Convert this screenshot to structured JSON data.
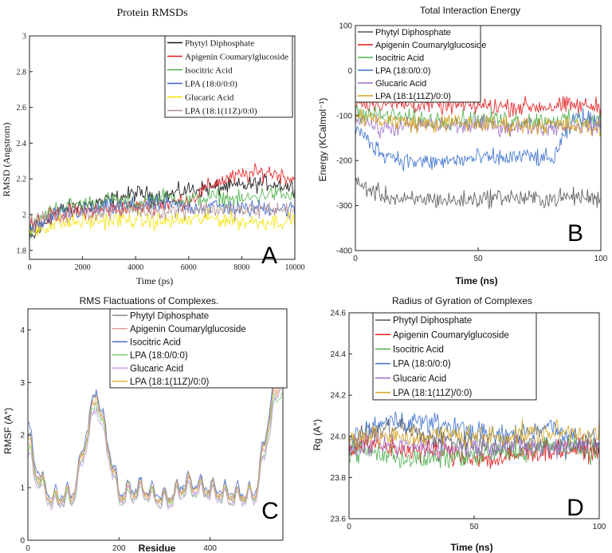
{
  "chart_data": [
    {
      "panel_letter": "A",
      "type": "line",
      "title": "Protein RMSDs",
      "xlabel": "Time (ps)",
      "ylabel": "RMSD (Angstrom)",
      "xlim": [
        0,
        10000
      ],
      "ylim": [
        1.75,
        3.0
      ],
      "xticks": [
        "0",
        "2000",
        "4000",
        "6000",
        "8000",
        "10000"
      ],
      "yticks": [
        "1.8",
        "2",
        "2.2",
        "2.4",
        "2.6",
        "2.8",
        "3"
      ],
      "legend_position": "top-right",
      "series": [
        {
          "name": "Phytyl Diphosphate",
          "color": "#111111",
          "x": [
            0,
            1000,
            2000,
            3000,
            4000,
            5000,
            6000,
            7000,
            8000,
            9000,
            10000
          ],
          "values": [
            1.85,
            2.02,
            2.05,
            2.08,
            2.12,
            2.1,
            2.14,
            2.15,
            2.16,
            2.18,
            2.15
          ]
        },
        {
          "name": "Apigenin Coumarylglucoside",
          "color": "#e41a1c",
          "x": [
            0,
            1000,
            2000,
            3000,
            4000,
            5000,
            6000,
            7000,
            8000,
            9000,
            10000
          ],
          "values": [
            1.95,
            2.0,
            2.02,
            2.03,
            2.04,
            2.06,
            2.08,
            2.18,
            2.22,
            2.24,
            2.2
          ]
        },
        {
          "name": "Isocitric Acid",
          "color": "#4daf4a",
          "x": [
            0,
            1000,
            2000,
            3000,
            4000,
            5000,
            6000,
            7000,
            8000,
            9000,
            10000
          ],
          "values": [
            1.92,
            2.04,
            2.06,
            2.08,
            2.06,
            2.1,
            2.08,
            2.1,
            2.08,
            2.12,
            2.1
          ]
        },
        {
          "name": "LPA (18:0/0:0)",
          "color": "#3a5fcd",
          "x": [
            0,
            1000,
            2000,
            3000,
            4000,
            5000,
            6000,
            7000,
            8000,
            9000,
            10000
          ],
          "values": [
            1.9,
            2.0,
            2.02,
            2.04,
            2.05,
            2.06,
            2.04,
            2.05,
            2.03,
            2.04,
            2.03
          ]
        },
        {
          "name": "Glucaric Acid",
          "color": "#f2e200",
          "x": [
            0,
            1000,
            2000,
            3000,
            4000,
            5000,
            6000,
            7000,
            8000,
            9000,
            10000
          ],
          "values": [
            1.9,
            1.95,
            1.96,
            1.97,
            1.97,
            1.96,
            1.97,
            1.98,
            1.96,
            1.96,
            1.97
          ]
        },
        {
          "name": "LPA (18:1(11Z)/0:0)",
          "color": "#b08e8a",
          "x": [
            0,
            1000,
            2000,
            3000,
            4000,
            5000,
            6000,
            7000,
            8000,
            9000,
            10000
          ],
          "values": [
            1.95,
            2.0,
            2.01,
            2.02,
            2.03,
            2.02,
            2.03,
            2.03,
            2.02,
            2.03,
            2.02
          ]
        }
      ]
    },
    {
      "panel_letter": "B",
      "type": "line",
      "title": "Total Interaction Energy",
      "xlabel": "Time (ns)",
      "ylabel": "Energy (KCalmol⁻¹)",
      "xlim": [
        0,
        100
      ],
      "ylim": [
        -400,
        100
      ],
      "xticks": [
        "0",
        "50",
        "100"
      ],
      "yticks": [
        "100",
        "0",
        "-100",
        "-200",
        "-300",
        "-400"
      ],
      "legend_position": "top-left",
      "series": [
        {
          "name": "Phytyl Diphosphate",
          "color": "#555555",
          "x": [
            0,
            10,
            20,
            30,
            40,
            50,
            60,
            70,
            80,
            90,
            100
          ],
          "values": [
            -250,
            -275,
            -290,
            -285,
            -290,
            -285,
            -280,
            -285,
            -285,
            -280,
            -285
          ]
        },
        {
          "name": "Apigenin Coumarylglucoside",
          "color": "#e41a1c",
          "x": [
            0,
            10,
            20,
            30,
            40,
            50,
            60,
            70,
            80,
            90,
            100
          ],
          "values": [
            -70,
            -72,
            -75,
            -75,
            -78,
            -78,
            -80,
            -80,
            -80,
            -78,
            -80
          ]
        },
        {
          "name": "Isocitric Acid",
          "color": "#4daf4a",
          "x": [
            0,
            10,
            20,
            30,
            40,
            50,
            60,
            70,
            80,
            90,
            100
          ],
          "values": [
            -90,
            -100,
            -105,
            -110,
            -110,
            -108,
            -110,
            -110,
            -112,
            -110,
            -110
          ]
        },
        {
          "name": "LPA (18:0/0:0)",
          "color": "#3a6fcd",
          "x": [
            0,
            10,
            20,
            30,
            40,
            50,
            60,
            70,
            80,
            90,
            100
          ],
          "values": [
            -130,
            -180,
            -200,
            -205,
            -200,
            -195,
            -195,
            -190,
            -200,
            -100,
            -120
          ]
        },
        {
          "name": "Glucaric Acid",
          "color": "#9e6fc8",
          "x": [
            0,
            10,
            20,
            30,
            40,
            50,
            60,
            70,
            80,
            90,
            100
          ],
          "values": [
            -100,
            -130,
            -125,
            -120,
            -125,
            -120,
            -125,
            -125,
            -125,
            -120,
            -125
          ]
        },
        {
          "name": "LPA (18:1(11Z)/0:0)",
          "color": "#d4a017",
          "x": [
            0,
            10,
            20,
            30,
            40,
            50,
            60,
            70,
            80,
            90,
            100
          ],
          "values": [
            -100,
            -110,
            -115,
            -120,
            -115,
            -120,
            -120,
            -122,
            -120,
            -125,
            -128
          ]
        }
      ]
    },
    {
      "panel_letter": "C",
      "type": "line",
      "title": "RMS Flactuations of Complexes.",
      "xlabel": "Residue",
      "ylabel": "RMSF (A°)",
      "xlim": [
        0,
        560
      ],
      "ylim": [
        0,
        4.4
      ],
      "xticks": [
        "0",
        "200",
        "400"
      ],
      "yticks": [
        "0",
        "1",
        "2",
        "3",
        "4"
      ],
      "legend_position": "top-right",
      "series": [
        {
          "name": "Phytyl Diphosphate",
          "color": "#888888",
          "x": [
            0,
            15,
            50,
            100,
            150,
            200,
            250,
            300,
            350,
            400,
            450,
            500,
            540,
            560
          ],
          "values": [
            2.0,
            1.3,
            0.7,
            0.8,
            2.8,
            0.8,
            0.9,
            0.7,
            1.0,
            0.9,
            0.8,
            0.8,
            2.8,
            3.8
          ]
        },
        {
          "name": "Apigenin Coumarylglucoside",
          "color": "#e0a0a0",
          "x": [
            0,
            15,
            50,
            100,
            150,
            200,
            250,
            300,
            350,
            400,
            450,
            500,
            540,
            560
          ],
          "values": [
            1.8,
            1.2,
            0.7,
            0.75,
            2.7,
            0.75,
            0.85,
            0.7,
            0.95,
            0.85,
            0.75,
            0.8,
            2.6,
            3.0
          ]
        },
        {
          "name": "Isocitric Acid",
          "color": "#4a6fd0",
          "x": [
            0,
            15,
            50,
            100,
            150,
            200,
            250,
            300,
            350,
            400,
            450,
            500,
            540,
            560
          ],
          "values": [
            2.2,
            1.4,
            0.75,
            0.85,
            2.85,
            0.85,
            0.95,
            0.75,
            1.05,
            0.95,
            0.85,
            0.85,
            2.9,
            3.7
          ]
        },
        {
          "name": "LPA (18:0/0:0)",
          "color": "#7ad07a",
          "x": [
            0,
            15,
            50,
            100,
            150,
            200,
            250,
            300,
            350,
            400,
            450,
            500,
            540,
            560
          ],
          "values": [
            1.7,
            1.2,
            0.65,
            0.7,
            2.6,
            0.7,
            0.8,
            0.65,
            0.9,
            0.8,
            0.7,
            0.75,
            2.5,
            2.8
          ]
        },
        {
          "name": "Glucaric Acid",
          "color": "#c49ae0",
          "x": [
            0,
            15,
            50,
            100,
            150,
            200,
            250,
            300,
            350,
            400,
            450,
            500,
            540,
            560
          ],
          "values": [
            1.6,
            1.1,
            0.6,
            0.7,
            2.5,
            0.7,
            0.8,
            0.6,
            0.9,
            0.8,
            0.7,
            0.7,
            2.4,
            3.2
          ]
        },
        {
          "name": "LPA (18:1(11Z)/0:0)",
          "color": "#e8b040",
          "x": [
            0,
            15,
            50,
            100,
            150,
            200,
            250,
            300,
            350,
            400,
            450,
            500,
            540,
            560
          ],
          "values": [
            1.9,
            1.3,
            0.7,
            0.8,
            2.7,
            0.8,
            0.9,
            0.7,
            1.0,
            0.9,
            0.8,
            0.8,
            2.7,
            3.0
          ]
        }
      ]
    },
    {
      "panel_letter": "D",
      "type": "line",
      "title": "Radius of Gyration of Complexes",
      "xlabel": "Time (ns)",
      "ylabel": "Rg (A°)",
      "xlim": [
        0,
        100
      ],
      "ylim": [
        23.6,
        24.6
      ],
      "xticks": [
        "0",
        "50",
        "100"
      ],
      "yticks": [
        "24.6",
        "24.4",
        "24.2",
        "24.0",
        "23.8",
        "23.6"
      ],
      "legend_position": "top-left",
      "series": [
        {
          "name": "Phytyl Diphosphate",
          "color": "#555555",
          "x": [
            0,
            10,
            20,
            30,
            40,
            50,
            60,
            70,
            80,
            90,
            100
          ],
          "values": [
            23.95,
            24.02,
            24.05,
            24.0,
            23.98,
            23.96,
            23.95,
            23.97,
            23.96,
            23.95,
            23.95
          ]
        },
        {
          "name": "Apigenin Coumarylglucoside",
          "color": "#e41a1c",
          "x": [
            0,
            10,
            20,
            30,
            40,
            50,
            60,
            70,
            80,
            90,
            100
          ],
          "values": [
            23.95,
            23.95,
            23.94,
            23.93,
            23.92,
            23.9,
            23.88,
            23.92,
            23.93,
            23.94,
            23.93
          ]
        },
        {
          "name": "Isocitric Acid",
          "color": "#4daf4a",
          "x": [
            0,
            10,
            20,
            30,
            40,
            50,
            60,
            70,
            80,
            90,
            100
          ],
          "values": [
            23.93,
            23.92,
            23.9,
            23.88,
            23.9,
            23.9,
            23.92,
            23.93,
            23.95,
            23.94,
            23.93
          ]
        },
        {
          "name": "LPA (18:0/0:0)",
          "color": "#3a6fcd",
          "x": [
            0,
            10,
            20,
            30,
            40,
            50,
            60,
            70,
            80,
            90,
            100
          ],
          "values": [
            23.98,
            24.05,
            24.08,
            24.07,
            24.05,
            24.02,
            24.0,
            24.02,
            24.05,
            24.0,
            23.98
          ]
        },
        {
          "name": "Glucaric Acid",
          "color": "#9e6fc8",
          "x": [
            0,
            10,
            20,
            30,
            40,
            50,
            60,
            70,
            80,
            90,
            100
          ],
          "values": [
            23.95,
            23.96,
            23.95,
            23.95,
            23.94,
            23.95,
            23.96,
            23.95,
            23.94,
            23.96,
            23.95
          ]
        },
        {
          "name": "LPA (18:1(11Z)/0:0)",
          "color": "#d4a017",
          "x": [
            0,
            10,
            20,
            30,
            40,
            50,
            60,
            70,
            80,
            90,
            100
          ],
          "values": [
            24.0,
            24.0,
            23.99,
            24.0,
            24.01,
            24.0,
            24.0,
            24.01,
            24.02,
            24.02,
            24.01
          ]
        }
      ]
    }
  ]
}
